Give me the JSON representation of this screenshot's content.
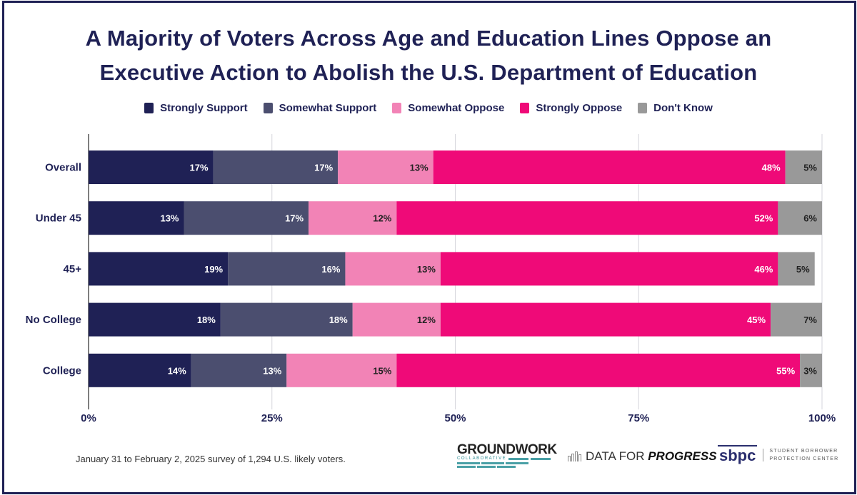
{
  "title_line1": "A Majority of Voters Across Age and Education Lines Oppose an",
  "title_line2": "Executive Action to Abolish the U.S. Department of Education",
  "footnote": "January 31 to February 2, 2025 survey of 1,294 U.S. likely voters.",
  "logos": {
    "groundwork": "GROUNDWORK",
    "groundwork_sub": "COLLABORATIVE",
    "dfp_prefix": "DATA FOR ",
    "dfp_bold": "PROGRESS",
    "sbpc_mark": "sbpc",
    "sbpc_line1": "STUDENT BORROWER",
    "sbpc_line2": "PROTECTION CENTER"
  },
  "chart_data": {
    "type": "bar",
    "orientation": "horizontal",
    "stacked": true,
    "title": "A Majority of Voters Across Age and Education Lines Oppose an Executive Action to Abolish the U.S. Department of Education",
    "categories": [
      "Overall",
      "Under 45",
      "45+",
      "No College",
      "College"
    ],
    "series": [
      {
        "name": "Strongly Support",
        "color": "#1f2155",
        "label_color": "#ffffff",
        "values": [
          17,
          13,
          19,
          18,
          14
        ]
      },
      {
        "name": "Somewhat Support",
        "color": "#4b4e6f",
        "label_color": "#ffffff",
        "values": [
          17,
          17,
          16,
          18,
          13
        ]
      },
      {
        "name": "Somewhat Oppose",
        "color": "#f283b6",
        "label_color": "#222222",
        "values": [
          13,
          12,
          13,
          12,
          15
        ]
      },
      {
        "name": "Strongly Oppose",
        "color": "#ef0a78",
        "label_color": "#ffffff",
        "values": [
          48,
          52,
          46,
          45,
          55
        ]
      },
      {
        "name": "Don't Know",
        "color": "#999999",
        "label_color": "#222222",
        "values": [
          5,
          6,
          5,
          7,
          3
        ]
      }
    ],
    "xlim": [
      0,
      100
    ],
    "xticks": [
      "0%",
      "25%",
      "50%",
      "75%",
      "100%"
    ],
    "xtick_values": [
      0,
      25,
      50,
      75,
      100
    ],
    "xlabel": "",
    "ylabel": "",
    "grid": true,
    "legend_position": "top-center"
  }
}
